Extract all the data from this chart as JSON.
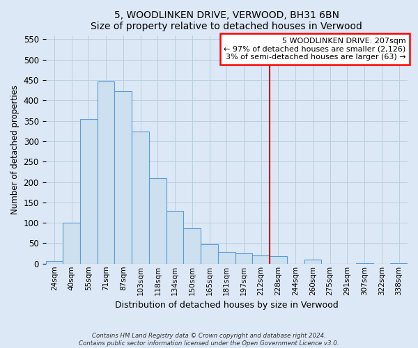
{
  "title": "5, WOODLINKEN DRIVE, VERWOOD, BH31 6BN",
  "subtitle": "Size of property relative to detached houses in Verwood",
  "xlabel": "Distribution of detached houses by size in Verwood",
  "ylabel": "Number of detached properties",
  "bar_labels": [
    "24sqm",
    "40sqm",
    "55sqm",
    "71sqm",
    "87sqm",
    "103sqm",
    "118sqm",
    "134sqm",
    "150sqm",
    "165sqm",
    "181sqm",
    "197sqm",
    "212sqm",
    "228sqm",
    "244sqm",
    "260sqm",
    "275sqm",
    "291sqm",
    "307sqm",
    "322sqm",
    "338sqm"
  ],
  "bar_values": [
    7,
    101,
    355,
    447,
    423,
    323,
    209,
    130,
    86,
    48,
    29,
    25,
    20,
    18,
    0,
    10,
    0,
    0,
    2,
    0,
    2
  ],
  "bar_color": "#cce0f0",
  "bar_edge_color": "#5b9bd5",
  "vline_color": "#cc0000",
  "vline_index": 12.5,
  "ylim": [
    0,
    560
  ],
  "yticks": [
    0,
    50,
    100,
    150,
    200,
    250,
    300,
    350,
    400,
    450,
    500,
    550
  ],
  "annotation_title": "5 WOODLINKEN DRIVE: 207sqm",
  "annotation_line1": "← 97% of detached houses are smaller (2,126)",
  "annotation_line2": "3% of semi-detached houses are larger (63) →",
  "footer1": "Contains HM Land Registry data © Crown copyright and database right 2024.",
  "footer2": "Contains public sector information licensed under the Open Government Licence v3.0.",
  "bg_color": "#dce8f5",
  "plot_bg_color": "#dce8f5",
  "grid_color": "#b8cfe0"
}
